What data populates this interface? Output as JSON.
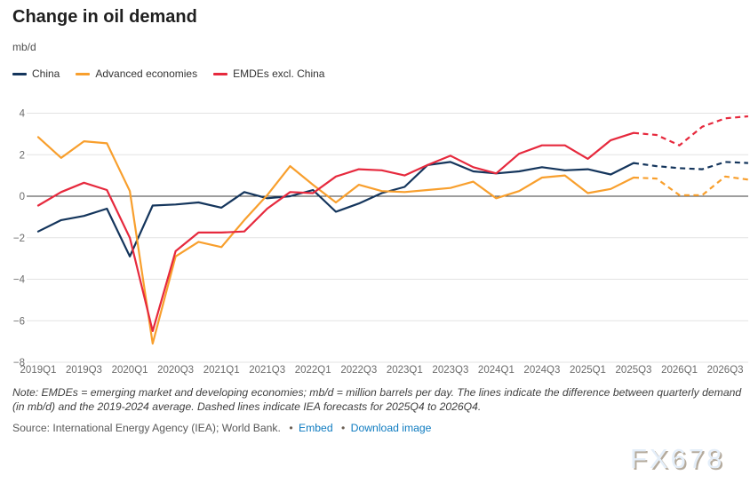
{
  "header": {
    "title": "Change in oil demand",
    "unit": "mb/d"
  },
  "legend": {
    "items": [
      {
        "id": "china",
        "label": "China",
        "color": "#14355c"
      },
      {
        "id": "advanced",
        "label": "Advanced economies",
        "color": "#f89f2d"
      },
      {
        "id": "emdes",
        "label": "EMDEs excl. China",
        "color": "#e6293d"
      }
    ]
  },
  "chart_data": {
    "type": "line",
    "title": "Change in oil demand",
    "ylabel": "mb/d",
    "xlabel": "",
    "ylim": [
      -8,
      4
    ],
    "yticks": [
      4,
      2,
      0,
      -2,
      -4,
      -6,
      -8
    ],
    "grid": "horizontal",
    "legend_position": "top-left",
    "xtick_step": 2,
    "forecast_start_index": 26,
    "forecast_range_label": "2025Q4 to 2026Q4",
    "categories": [
      "2019Q1",
      "2019Q2",
      "2019Q3",
      "2019Q4",
      "2020Q1",
      "2020Q2",
      "2020Q3",
      "2020Q4",
      "2021Q1",
      "2021Q2",
      "2021Q3",
      "2021Q4",
      "2022Q1",
      "2022Q2",
      "2022Q3",
      "2022Q4",
      "2023Q1",
      "2023Q2",
      "2023Q3",
      "2023Q4",
      "2024Q1",
      "2024Q2",
      "2024Q3",
      "2024Q4",
      "2025Q1",
      "2025Q2",
      "2025Q3",
      "2025Q4",
      "2026Q1",
      "2026Q2",
      "2026Q3",
      "2026Q4"
    ],
    "series": [
      {
        "id": "china",
        "name": "China",
        "color": "#14355c",
        "values": [
          -1.7,
          -1.15,
          -0.95,
          -0.6,
          -2.9,
          -0.45,
          -0.4,
          -0.3,
          -0.55,
          0.2,
          -0.1,
          0.0,
          0.3,
          -0.75,
          -0.35,
          0.15,
          0.45,
          1.5,
          1.65,
          1.2,
          1.1,
          1.2,
          1.4,
          1.25,
          1.3,
          1.05,
          1.6,
          1.45,
          1.35,
          1.3,
          1.65,
          1.6
        ]
      },
      {
        "id": "advanced",
        "name": "Advanced economies",
        "color": "#f89f2d",
        "values": [
          2.85,
          1.85,
          2.65,
          2.55,
          0.25,
          -7.1,
          -2.9,
          -2.2,
          -2.45,
          -1.15,
          0.05,
          1.45,
          0.55,
          -0.3,
          0.55,
          0.25,
          0.2,
          0.3,
          0.4,
          0.7,
          -0.1,
          0.25,
          0.9,
          1.0,
          0.15,
          0.35,
          0.9,
          0.85,
          0.05,
          0.05,
          0.95,
          0.8
        ]
      },
      {
        "id": "emdes",
        "name": "EMDEs excl. China",
        "color": "#e6293d",
        "values": [
          -0.45,
          0.2,
          0.65,
          0.3,
          -2.0,
          -6.5,
          -2.65,
          -1.75,
          -1.75,
          -1.7,
          -0.6,
          0.2,
          0.15,
          0.95,
          1.3,
          1.25,
          1.0,
          1.5,
          1.95,
          1.4,
          1.1,
          2.05,
          2.45,
          2.45,
          1.8,
          2.7,
          3.05,
          2.95,
          2.45,
          3.35,
          3.75,
          3.85
        ]
      }
    ]
  },
  "footer": {
    "note": "Note: EMDEs = emerging market and developing economies; mb/d = million barrels per day. The lines indicate the difference between quarterly demand (in mb/d) and the 2019-2024 average. Dashed lines indicate IEA forecasts for 2025Q4 to 2026Q4.",
    "source": "Source: International Energy Agency (IEA); World Bank.",
    "bullet": "•",
    "links": [
      {
        "label": "Embed"
      },
      {
        "label": "Download image"
      }
    ]
  },
  "watermark": {
    "text": "FX678"
  }
}
